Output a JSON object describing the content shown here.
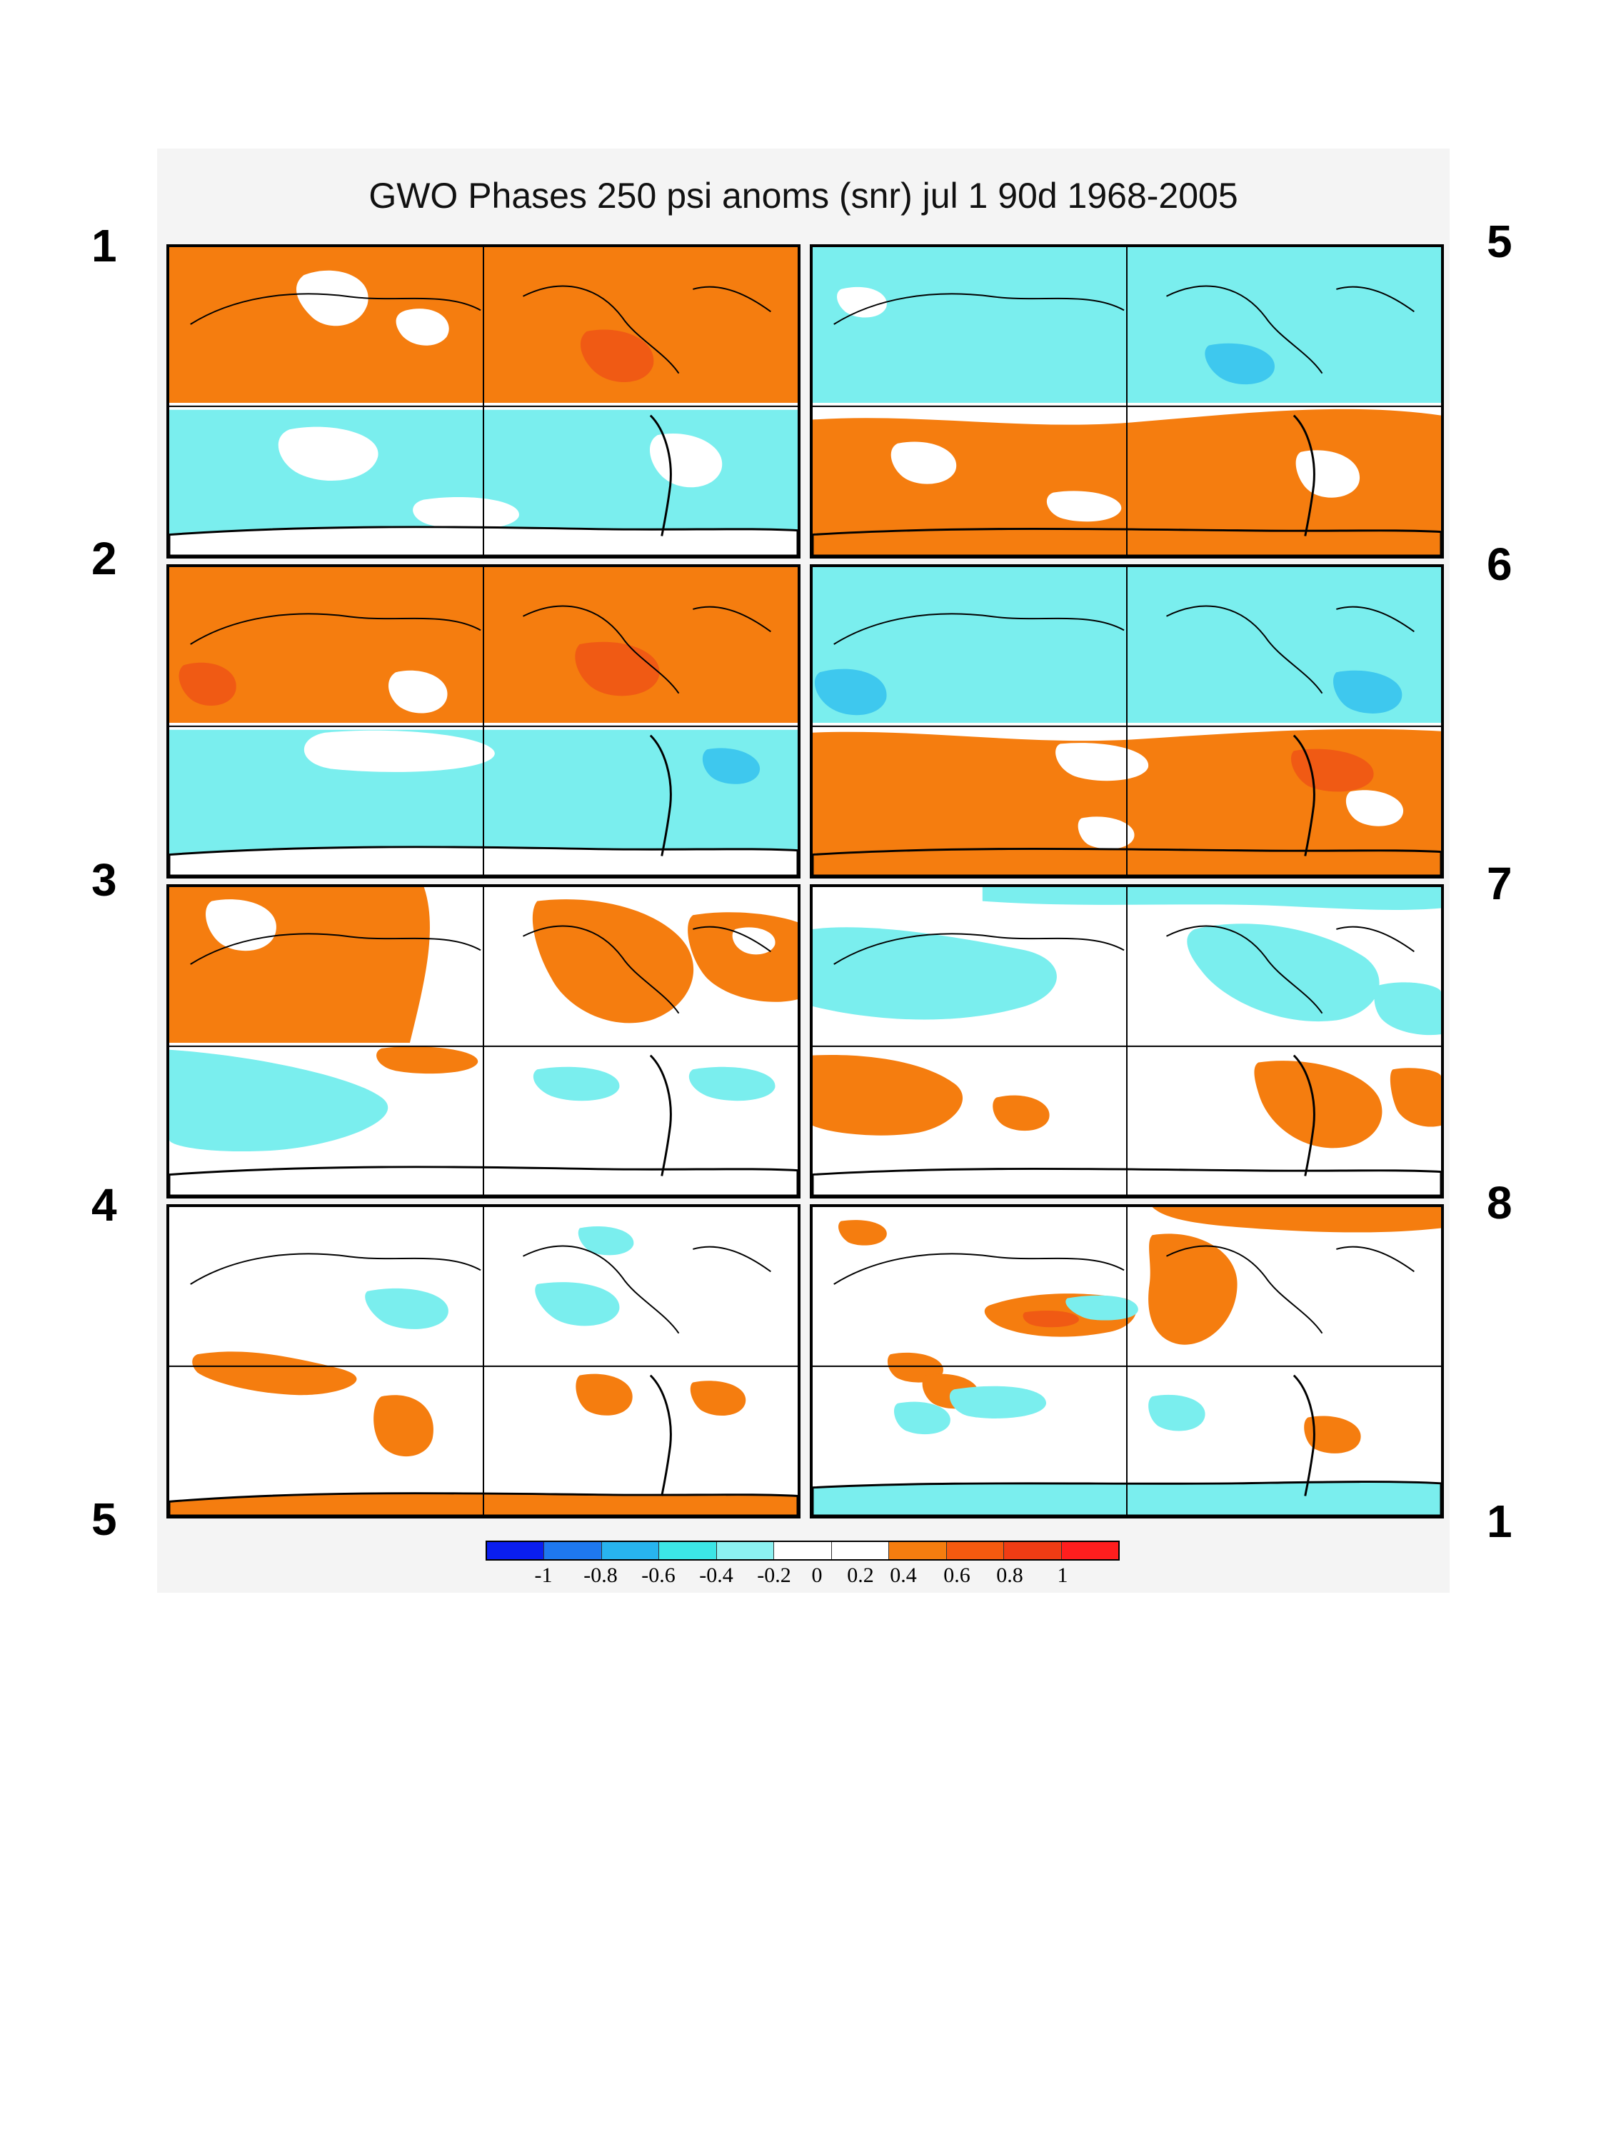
{
  "title": "GWO Phases 250 psi anoms (snr) jul 1 90d 1968-2005",
  "left_labels": [
    "1",
    "2",
    "3",
    "4",
    "5"
  ],
  "right_labels": [
    "5",
    "6",
    "7",
    "8",
    "1"
  ],
  "panels": [
    {
      "phase": 1,
      "column": "left",
      "row": 1,
      "pattern": "north-positive-south-negative"
    },
    {
      "phase": 2,
      "column": "left",
      "row": 2,
      "pattern": "north-positive-south-negative"
    },
    {
      "phase": 3,
      "column": "left",
      "row": 3,
      "pattern": "north-positive-south-weak-negative"
    },
    {
      "phase": 4,
      "column": "left",
      "row": 4,
      "pattern": "mixed-weak"
    },
    {
      "phase": 5,
      "column": "right",
      "row": 1,
      "pattern": "north-negative-south-positive"
    },
    {
      "phase": 6,
      "column": "right",
      "row": 2,
      "pattern": "north-negative-south-positive"
    },
    {
      "phase": 7,
      "column": "right",
      "row": 3,
      "pattern": "north-weak-negative-south-positive"
    },
    {
      "phase": 8,
      "column": "right",
      "row": 4,
      "pattern": "mixed-weak"
    }
  ],
  "colorbar": {
    "colors": [
      "#0a1ef0",
      "#1e78f0",
      "#28b4ee",
      "#3ce6e6",
      "#8cf2f2",
      "#ffffff",
      "#ffffff",
      "#f57d0f",
      "#f55a0f",
      "#f03c14",
      "#ff1e1e"
    ],
    "tick_labels": [
      "-1",
      "-0.8",
      "-0.6",
      "-0.4",
      "-0.2",
      "0",
      "0.2",
      "0.4",
      "0.6",
      "0.8",
      "1"
    ]
  },
  "legend_colors": {
    "positive": "#f57d0f",
    "strong_positive": "#f05a14",
    "negative": "#7aeeee",
    "strong_negative": "#3ec8ee",
    "neutral": "#ffffff"
  }
}
